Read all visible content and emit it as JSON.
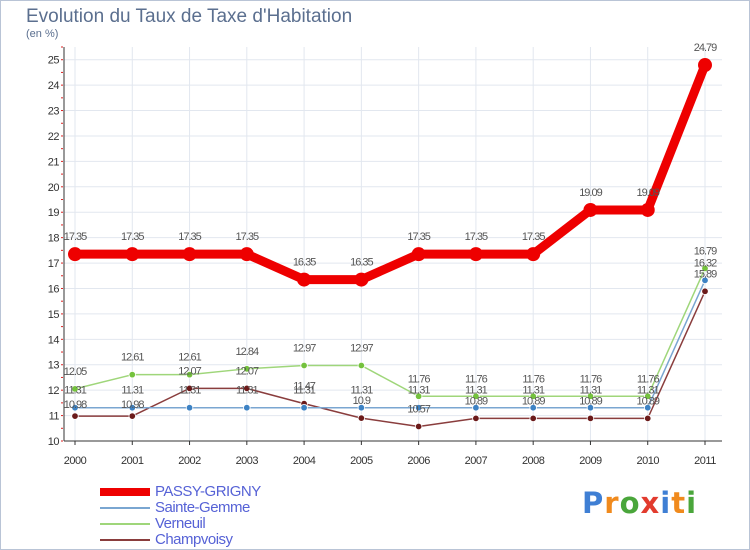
{
  "title": "Evolution du Taux de Taxe d'Habitation",
  "unit": "(en %)",
  "logo": {
    "text": "Proxiti",
    "letters": [
      {
        "ch": "P",
        "color": "#3f7fd4"
      },
      {
        "ch": "r",
        "color": "#f08a1d"
      },
      {
        "ch": "o",
        "color": "#4aa63b"
      },
      {
        "ch": "x",
        "color": "#e23b2e"
      },
      {
        "ch": "i",
        "color": "#3f7fd4"
      },
      {
        "ch": "t",
        "color": "#f08a1d"
      },
      {
        "ch": "i",
        "color": "#4aa63b"
      }
    ]
  },
  "chart_data": {
    "type": "line",
    "title": "Evolution du Taux de Taxe d'Habitation",
    "ylabel": "(en %)",
    "xlabel": "",
    "ylim": [
      10,
      25.5
    ],
    "yticks": [
      "10",
      "11",
      "12",
      "13",
      "14",
      "15",
      "16",
      "17",
      "18",
      "19",
      "20",
      "21",
      "22",
      "23",
      "24",
      "25"
    ],
    "categories": [
      "2000",
      "2001",
      "2002",
      "2003",
      "2004",
      "2005",
      "2006",
      "2007",
      "2008",
      "2009",
      "2010",
      "2011"
    ],
    "legend_position": "bottom-left",
    "series": [
      {
        "name": "PASSY-GRIGNY",
        "color": "#ee0000",
        "values": [
          17.35,
          17.35,
          17.35,
          17.35,
          16.35,
          16.35,
          17.35,
          17.35,
          17.35,
          19.09,
          19.09,
          24.79
        ],
        "labels": [
          "17.35",
          "17.35",
          "17.35",
          "17.35",
          "16.35",
          "16.35",
          "17.35",
          "17.35",
          "17.35",
          "19.09",
          "19.09",
          "24.79"
        ]
      },
      {
        "name": "Sainte-Gemme",
        "color": "#7aa6d1",
        "dot_color": "#3d82c4",
        "values": [
          11.31,
          11.31,
          11.31,
          11.31,
          11.31,
          11.31,
          11.31,
          11.31,
          11.31,
          11.31,
          11.31,
          16.32
        ],
        "labels": [
          "11.31",
          "11.31",
          "11.31",
          "11.31",
          "11.31",
          "11.31",
          "11.31",
          "11.31",
          "11.31",
          "11.31",
          "11.31",
          "16.32"
        ]
      },
      {
        "name": "Verneuil",
        "color": "#9fd67a",
        "dot_color": "#74c23d",
        "values": [
          12.05,
          12.61,
          12.61,
          12.84,
          12.97,
          12.97,
          11.76,
          11.76,
          11.76,
          11.76,
          11.76,
          16.79
        ],
        "labels": [
          "12.05",
          "12.61",
          "12.61",
          "12.84",
          "12.97",
          "12.97",
          "11.76",
          "11.76",
          "11.76",
          "11.76",
          "11.76",
          "16.79"
        ]
      },
      {
        "name": "Champvoisy",
        "color": "#8a3d3d",
        "dot_color": "#6b1a1a",
        "values": [
          10.98,
          10.98,
          12.07,
          12.07,
          11.47,
          10.9,
          10.57,
          10.89,
          10.89,
          10.89,
          10.89,
          15.89
        ],
        "labels": [
          "10.98",
          "10.98",
          "12.07",
          "12.07",
          "11.47",
          "10.9",
          "10.57",
          "10.89",
          "10.89",
          "10.89",
          "10.89",
          "15.89"
        ]
      }
    ]
  }
}
